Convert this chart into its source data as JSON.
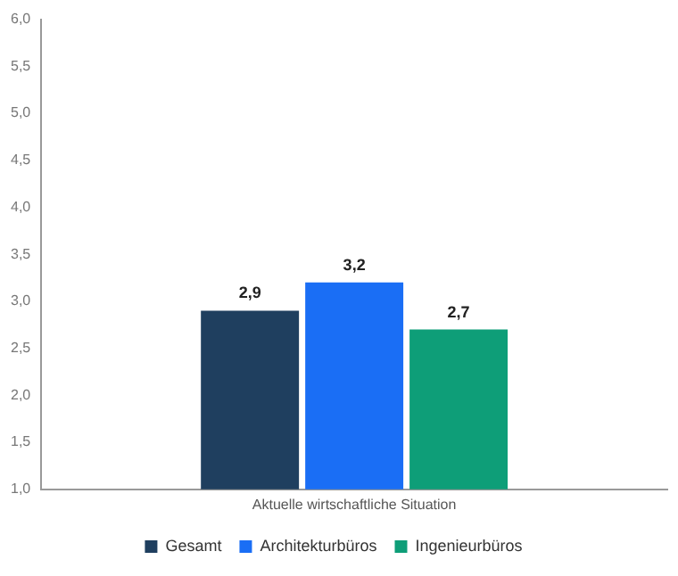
{
  "chart_data": {
    "type": "bar",
    "xlabel": null,
    "categories": [
      "Aktuelle wirtschaftliche Situation"
    ],
    "series": [
      {
        "name": "Gesamt",
        "color": "#1f3f5f",
        "values": [
          2.9
        ],
        "value_labels": [
          "2,9"
        ]
      },
      {
        "name": "Architekturbüros",
        "color": "#1a6ef5",
        "values": [
          3.2
        ],
        "value_labels": [
          "3,2"
        ]
      },
      {
        "name": "Ingenieurbüros",
        "color": "#0e9e78",
        "values": [
          2.7
        ],
        "value_labels": [
          "2,7"
        ]
      }
    ],
    "ylim": [
      1.0,
      6.0
    ],
    "yticks": [
      {
        "value": 1.0,
        "label": "1,0"
      },
      {
        "value": 1.5,
        "label": "1,5"
      },
      {
        "value": 2.0,
        "label": "2,0"
      },
      {
        "value": 2.5,
        "label": "2,5"
      },
      {
        "value": 3.0,
        "label": "3,0"
      },
      {
        "value": 3.5,
        "label": "3,5"
      },
      {
        "value": 4.0,
        "label": "4,0"
      },
      {
        "value": 4.5,
        "label": "4,5"
      },
      {
        "value": 5.0,
        "label": "5,0"
      },
      {
        "value": 5.5,
        "label": "5,5"
      },
      {
        "value": 6.0,
        "label": "6,0"
      }
    ],
    "grid": false,
    "legend": "bottom"
  }
}
